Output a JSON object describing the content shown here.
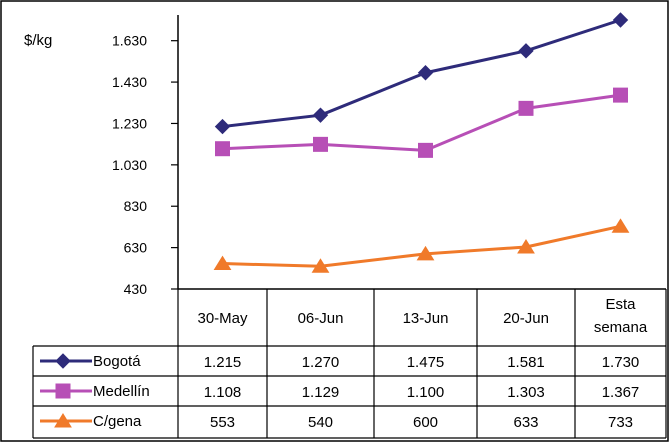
{
  "chart_data": {
    "type": "line",
    "ylabel": "$/kg",
    "ylim": [
      430,
      1730
    ],
    "yticks": [
      430,
      630,
      830,
      1030,
      1230,
      1430,
      1630
    ],
    "ytick_labels": [
      "430",
      "630",
      "830",
      "1.030",
      "1.230",
      "1.430",
      "1.630"
    ],
    "categories": [
      "30-May",
      "06-Jun",
      "13-Jun",
      "20-Jun",
      "Esta semana"
    ],
    "grid": false,
    "legend": "data-table",
    "series": [
      {
        "name": "Bogotá",
        "color": "#2E2B7A",
        "marker": "diamond",
        "values": [
          1215,
          1270,
          1475,
          1581,
          1730
        ],
        "display": [
          "1.215",
          "1.270",
          "1.475",
          "1.581",
          "1.730"
        ]
      },
      {
        "name": "Medellín",
        "color": "#B74FB6",
        "marker": "square",
        "values": [
          1108,
          1129,
          1100,
          1303,
          1367
        ],
        "display": [
          "1.108",
          "1.129",
          "1.100",
          "1.303",
          "1.367"
        ]
      },
      {
        "name": "C/gena",
        "color": "#F07A2A",
        "marker": "triangle",
        "values": [
          553,
          540,
          600,
          633,
          733
        ],
        "display": [
          "553",
          "540",
          "600",
          "633",
          "733"
        ]
      }
    ]
  }
}
